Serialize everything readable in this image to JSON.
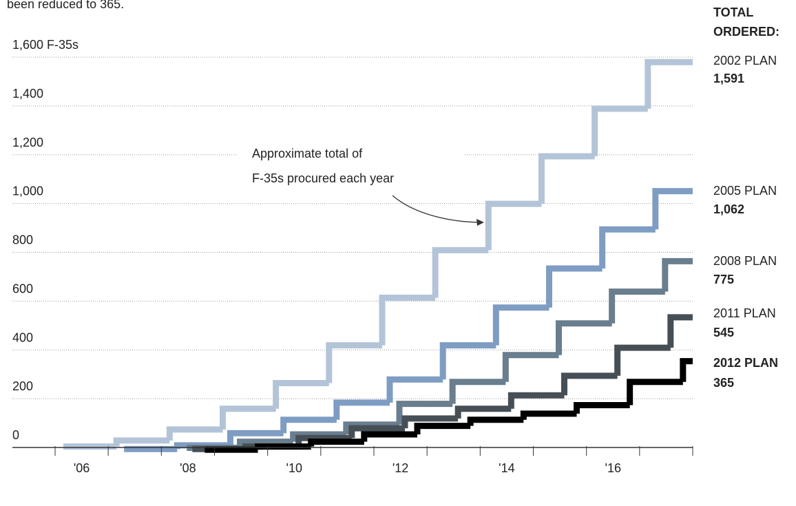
{
  "chart_data": {
    "type": "step",
    "subtitle": "been reduced to 365.",
    "ylabel": "F-35s",
    "legend_title": [
      "TOTAL",
      "ORDERED:"
    ],
    "annotation": [
      "Approximate total of",
      "F-35s procured each year"
    ],
    "categories": [
      "'06",
      null,
      "'08",
      null,
      "'10",
      null,
      "'12",
      null,
      "'14",
      null,
      "'16",
      null
    ],
    "ylim": [
      0,
      1650
    ],
    "yticks": [
      0,
      200,
      400,
      600,
      800,
      {
        "value": 1000,
        "label": "1,000"
      },
      {
        "value": 1200,
        "label": "1,200"
      },
      {
        "value": 1400,
        "label": "1,400"
      },
      {
        "value": 1600,
        "label": "1,600"
      }
    ],
    "grid": true,
    "series": [
      {
        "name": "2002 PLAN",
        "color": "#b4c4d8",
        "values": [
          15,
          40,
          85,
          170,
          275,
          430,
          625,
          820,
          1010,
          1205,
          1400,
          1591
        ],
        "value_labels": [
          null,
          null,
          null,
          null,
          null,
          null,
          null,
          null,
          null,
          null,
          null,
          "1,591"
        ]
      },
      {
        "name": "2005 PLAN",
        "color": "#7f9dc3",
        "values": [
          null,
          5,
          20,
          70,
          125,
          195,
          290,
          430,
          585,
          745,
          905,
          1062
        ],
        "value_labels": [
          null,
          null,
          null,
          null,
          null,
          null,
          null,
          null,
          null,
          null,
          null,
          "1,062"
        ]
      },
      {
        "name": "2008 PLAN",
        "color": "#697e8e",
        "values": [
          null,
          null,
          10,
          35,
          65,
          105,
          190,
          280,
          390,
          520,
          650,
          775
        ],
        "value_labels": [
          null,
          null,
          null,
          null,
          null,
          null,
          null,
          null,
          null,
          null,
          null,
          "775"
        ]
      },
      {
        "name": "2011 PLAN",
        "color": "#474f56",
        "values": [
          null,
          null,
          5,
          15,
          50,
          90,
          130,
          170,
          225,
          305,
          420,
          545
        ],
        "value_labels": [
          null,
          null,
          null,
          null,
          null,
          null,
          null,
          null,
          null,
          null,
          null,
          "545"
        ]
      },
      {
        "name": "2012 PLAN",
        "color": "#000000",
        "values": [
          null,
          null,
          2,
          15,
          35,
          65,
          100,
          125,
          150,
          185,
          280,
          365
        ],
        "value_labels": [
          null,
          null,
          null,
          null,
          null,
          null,
          null,
          null,
          null,
          null,
          null,
          "365"
        ]
      }
    ]
  }
}
